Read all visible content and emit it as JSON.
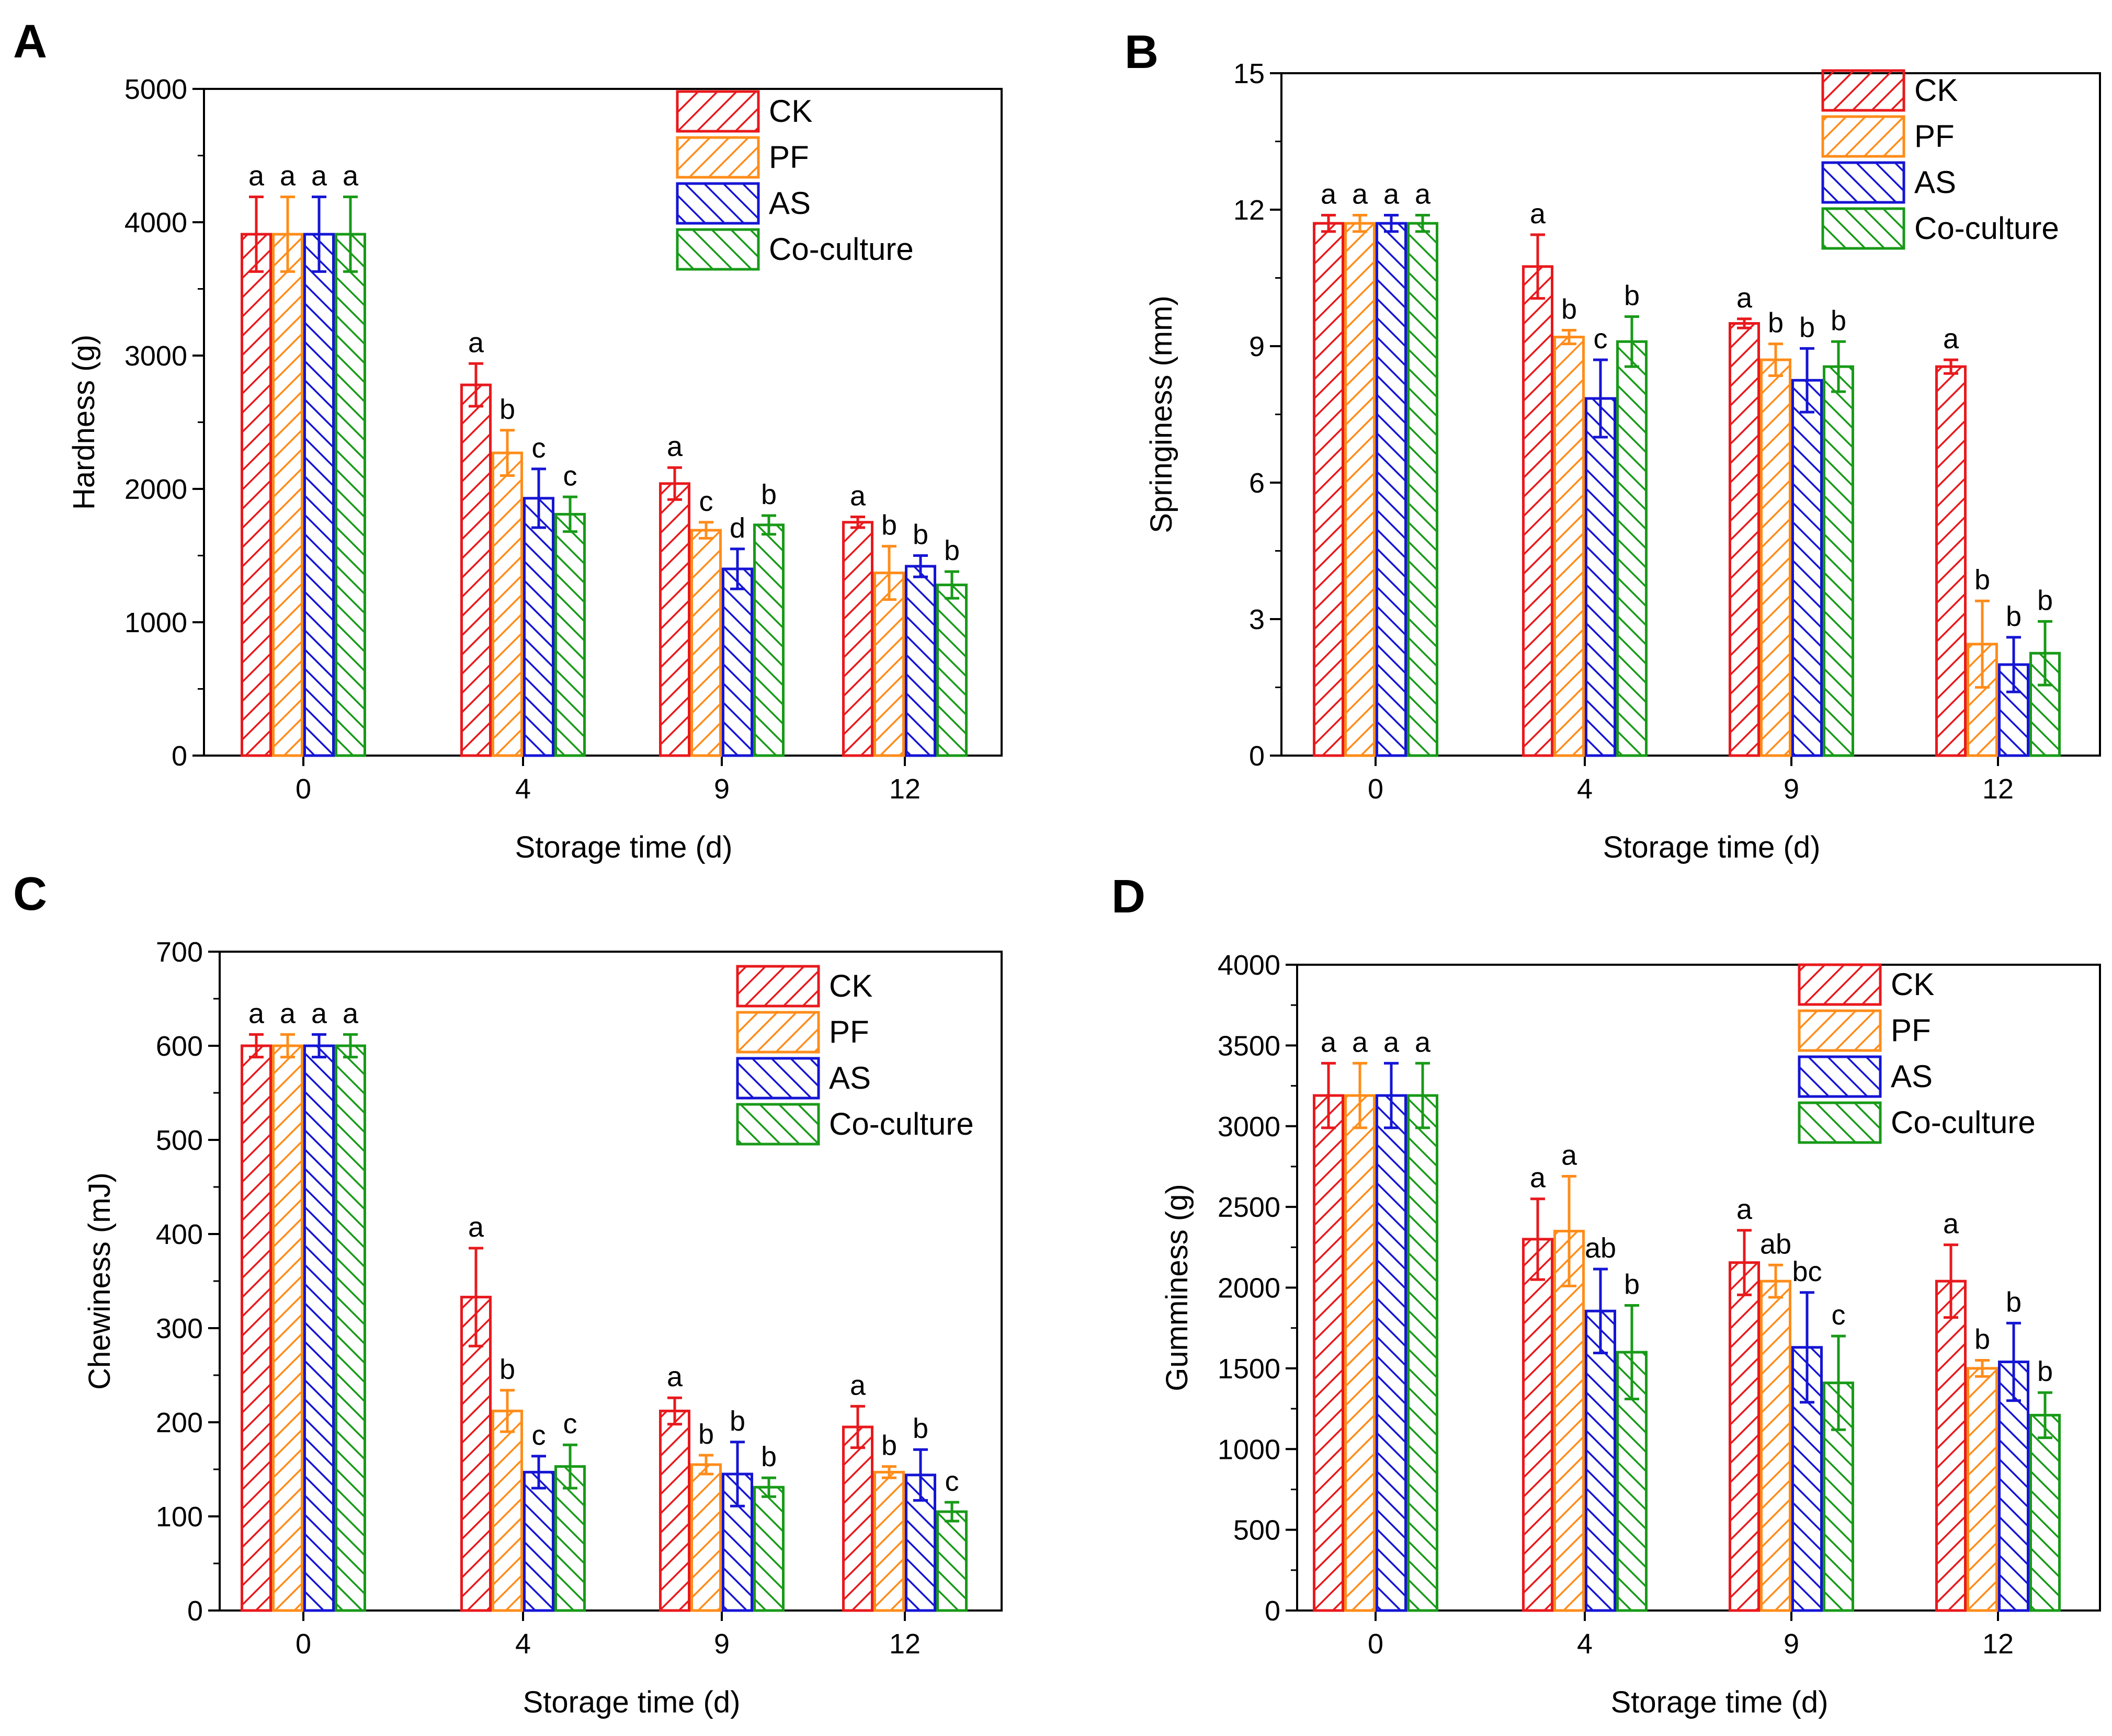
{
  "chart_data": [
    {
      "type": "bar",
      "panel": "A",
      "categories": [
        "0",
        "4",
        "9",
        "12"
      ],
      "xlabel": "Storage time (d)",
      "ylabel": "Hardness (g)",
      "ylim": [
        0,
        5000
      ],
      "yticks": [
        "0",
        "1000",
        "2000",
        "3000",
        "4000",
        "5000"
      ],
      "series": [
        {
          "name": "CK",
          "values": [
            3910,
            2780,
            2040,
            1750
          ],
          "errors": [
            280,
            160,
            120,
            40
          ],
          "labels": [
            "a",
            "a",
            "a",
            "a"
          ]
        },
        {
          "name": "PF",
          "values": [
            3910,
            2270,
            1690,
            1370
          ],
          "errors": [
            280,
            170,
            60,
            200
          ],
          "labels": [
            "a",
            "b",
            "c",
            "b"
          ]
        },
        {
          "name": "AS",
          "values": [
            3910,
            1930,
            1400,
            1420
          ],
          "errors": [
            280,
            220,
            150,
            80
          ],
          "labels": [
            "a",
            "c",
            "d",
            "b"
          ]
        },
        {
          "name": "Co-culture",
          "values": [
            3910,
            1810,
            1730,
            1280
          ],
          "errors": [
            280,
            130,
            70,
            100
          ],
          "labels": [
            "a",
            "c",
            "b",
            "b"
          ]
        }
      ]
    },
    {
      "type": "bar",
      "panel": "B",
      "categories": [
        "0",
        "4",
        "9",
        "12"
      ],
      "xlabel": "Storage time (d)",
      "ylabel": "Springiness (mm)",
      "ylim": [
        0,
        15
      ],
      "yticks": [
        "0",
        "3",
        "6",
        "9",
        "12",
        "15"
      ],
      "series": [
        {
          "name": "CK",
          "values": [
            11.7,
            10.75,
            9.5,
            8.55
          ],
          "errors": [
            0.18,
            0.7,
            0.1,
            0.15
          ],
          "labels": [
            "a",
            "a",
            "a",
            "a"
          ]
        },
        {
          "name": "PF",
          "values": [
            11.7,
            9.2,
            8.7,
            2.45
          ],
          "errors": [
            0.18,
            0.15,
            0.35,
            0.95
          ],
          "labels": [
            "a",
            "b",
            "b",
            "b"
          ]
        },
        {
          "name": "AS",
          "values": [
            11.7,
            7.85,
            8.25,
            2.0
          ],
          "errors": [
            0.18,
            0.85,
            0.7,
            0.6
          ],
          "labels": [
            "a",
            "c",
            "b",
            "b"
          ]
        },
        {
          "name": "Co-culture",
          "values": [
            11.7,
            9.1,
            8.55,
            2.25
          ],
          "errors": [
            0.18,
            0.55,
            0.55,
            0.7
          ],
          "labels": [
            "a",
            "b",
            "b",
            "b"
          ]
        }
      ]
    },
    {
      "type": "bar",
      "panel": "C",
      "categories": [
        "0",
        "4",
        "9",
        "12"
      ],
      "xlabel": "Storage time (d)",
      "ylabel": "Chewiness (mJ)",
      "ylim": [
        0,
        700
      ],
      "yticks": [
        "0",
        "100",
        "200",
        "300",
        "400",
        "500",
        "600",
        "700"
      ],
      "series": [
        {
          "name": "CK",
          "values": [
            600,
            333,
            212,
            195
          ],
          "errors": [
            12,
            52,
            14,
            22
          ],
          "labels": [
            "a",
            "a",
            "a",
            "a"
          ]
        },
        {
          "name": "PF",
          "values": [
            600,
            212,
            155,
            147
          ],
          "errors": [
            12,
            22,
            10,
            6
          ],
          "labels": [
            "a",
            "b",
            "b",
            "b"
          ]
        },
        {
          "name": "AS",
          "values": [
            600,
            147,
            145,
            144
          ],
          "errors": [
            12,
            17,
            34,
            27
          ],
          "labels": [
            "a",
            "c",
            "b",
            "b"
          ]
        },
        {
          "name": "Co-culture",
          "values": [
            600,
            153,
            131,
            105
          ],
          "errors": [
            12,
            23,
            10,
            10
          ],
          "labels": [
            "a",
            "c",
            "b",
            "c"
          ]
        }
      ]
    },
    {
      "type": "bar",
      "panel": "D",
      "categories": [
        "0",
        "4",
        "9",
        "12"
      ],
      "xlabel": "Storage time (d)",
      "ylabel": "Gumminess (g)",
      "ylim": [
        0,
        4000
      ],
      "yticks": [
        "0",
        "500",
        "1000",
        "1500",
        "2000",
        "2500",
        "3000",
        "3500",
        "4000"
      ],
      "series": [
        {
          "name": "CK",
          "values": [
            3190,
            2300,
            2155,
            2040
          ],
          "errors": [
            200,
            250,
            200,
            225
          ],
          "labels": [
            "a",
            "a",
            "a",
            "a"
          ]
        },
        {
          "name": "PF",
          "values": [
            3190,
            2350,
            2040,
            1500
          ],
          "errors": [
            200,
            340,
            100,
            50
          ],
          "labels": [
            "a",
            "a",
            "ab",
            "b"
          ]
        },
        {
          "name": "AS",
          "values": [
            3190,
            1855,
            1630,
            1540
          ],
          "errors": [
            200,
            260,
            340,
            240
          ],
          "labels": [
            "a",
            "ab",
            "bc",
            "b"
          ]
        },
        {
          "name": "Co-culture",
          "values": [
            3190,
            1600,
            1410,
            1210
          ],
          "errors": [
            200,
            290,
            290,
            140
          ],
          "labels": [
            "a",
            "b",
            "c",
            "b"
          ]
        }
      ]
    }
  ],
  "colors": {
    "CK": "#e8191d",
    "PF": "#ff8c1a",
    "AS": "#1515d4",
    "Co-culture": "#189a18"
  }
}
